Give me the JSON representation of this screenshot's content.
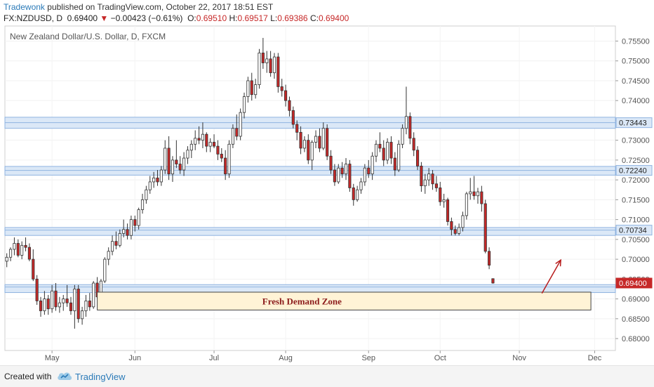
{
  "header": {
    "author": "Tradewonk",
    "published_text": "published on TradingView.com, October 22, 2017 18:51 EST",
    "symbol": "FX:NZDUSD, D",
    "last": "0.69400",
    "change": "−0.00423 (−0.61%)",
    "o_label": "O:",
    "o_value": "0.69510",
    "h_label": "H:",
    "h_value": "0.69517",
    "l_label": "L:",
    "l_value": "0.69386",
    "c_label": "C:",
    "c_value": "0.69400"
  },
  "footer": {
    "created_with": "Created with",
    "brand": "TradingView"
  },
  "chart_data": {
    "type": "candlestick",
    "title": "New Zealand Dollar/U.S. Dollar, D, FXCM",
    "ylim": [
      0.677,
      0.7588
    ],
    "y_ticks": [
      "0.75500",
      "0.75000",
      "0.74500",
      "0.74000",
      "0.73500",
      "0.73000",
      "0.72500",
      "0.72000",
      "0.71500",
      "0.71000",
      "0.70500",
      "0.70000",
      "0.69500",
      "0.69000",
      "0.68500",
      "0.68000"
    ],
    "x_tick_labels": [
      "May",
      "Jun",
      "Jul",
      "Aug",
      "Sep",
      "Oct",
      "Nov",
      "Dec"
    ],
    "x_tick_index": [
      12,
      34,
      55,
      74,
      96,
      115,
      136,
      156
    ],
    "total_slots": 162,
    "resistance_levels": [
      {
        "value": 0.73443,
        "label": "0.73443",
        "band": [
          0.733,
          0.7358
        ]
      },
      {
        "value": 0.7224,
        "label": "0.72240",
        "band": [
          0.7212,
          0.7234
        ]
      },
      {
        "value": 0.70734,
        "label": "0.70734",
        "band": [
          0.706,
          0.708
        ]
      },
      {
        "value": 0.693,
        "label": "",
        "band": [
          0.6916,
          0.6936
        ]
      }
    ],
    "current_price_label": "0.69400",
    "zone": {
      "label": "Fresh Demand Zone",
      "top": 0.6917,
      "bottom": 0.6872,
      "start_index": 24,
      "end_index": 155
    },
    "arrow": {
      "from_index": 142,
      "from_value": 0.6914,
      "to_index": 147,
      "to_value": 0.6998
    },
    "candles": [
      {
        "o": 0.6995,
        "h": 0.7015,
        "l": 0.698,
        "c": 0.7005
      },
      {
        "o": 0.7005,
        "h": 0.703,
        "l": 0.6995,
        "c": 0.7025
      },
      {
        "o": 0.7025,
        "h": 0.7055,
        "l": 0.701,
        "c": 0.704
      },
      {
        "o": 0.704,
        "h": 0.705,
        "l": 0.7005,
        "c": 0.701
      },
      {
        "o": 0.701,
        "h": 0.7045,
        "l": 0.7,
        "c": 0.7035
      },
      {
        "o": 0.7035,
        "h": 0.7055,
        "l": 0.702,
        "c": 0.703
      },
      {
        "o": 0.703,
        "h": 0.704,
        "l": 0.6995,
        "c": 0.7
      },
      {
        "o": 0.7,
        "h": 0.7025,
        "l": 0.6945,
        "c": 0.695
      },
      {
        "o": 0.695,
        "h": 0.696,
        "l": 0.6885,
        "c": 0.6895
      },
      {
        "o": 0.6895,
        "h": 0.6905,
        "l": 0.6855,
        "c": 0.687
      },
      {
        "o": 0.687,
        "h": 0.692,
        "l": 0.686,
        "c": 0.69
      },
      {
        "o": 0.69,
        "h": 0.691,
        "l": 0.686,
        "c": 0.6875
      },
      {
        "o": 0.6875,
        "h": 0.6935,
        "l": 0.6865,
        "c": 0.692
      },
      {
        "o": 0.692,
        "h": 0.694,
        "l": 0.687,
        "c": 0.688
      },
      {
        "o": 0.688,
        "h": 0.6905,
        "l": 0.6865,
        "c": 0.689
      },
      {
        "o": 0.689,
        "h": 0.691,
        "l": 0.687,
        "c": 0.69
      },
      {
        "o": 0.69,
        "h": 0.6935,
        "l": 0.688,
        "c": 0.689
      },
      {
        "o": 0.689,
        "h": 0.6905,
        "l": 0.686,
        "c": 0.687
      },
      {
        "o": 0.687,
        "h": 0.6935,
        "l": 0.6825,
        "c": 0.6925
      },
      {
        "o": 0.6925,
        "h": 0.6935,
        "l": 0.684,
        "c": 0.685
      },
      {
        "o": 0.685,
        "h": 0.688,
        "l": 0.6835,
        "c": 0.687
      },
      {
        "o": 0.687,
        "h": 0.691,
        "l": 0.6855,
        "c": 0.6895
      },
      {
        "o": 0.6895,
        "h": 0.6915,
        "l": 0.687,
        "c": 0.688
      },
      {
        "o": 0.688,
        "h": 0.6945,
        "l": 0.6875,
        "c": 0.694
      },
      {
        "o": 0.694,
        "h": 0.6955,
        "l": 0.69,
        "c": 0.6905
      },
      {
        "o": 0.6905,
        "h": 0.695,
        "l": 0.6895,
        "c": 0.6945
      },
      {
        "o": 0.6945,
        "h": 0.7005,
        "l": 0.694,
        "c": 0.7
      },
      {
        "o": 0.7,
        "h": 0.703,
        "l": 0.6985,
        "c": 0.702
      },
      {
        "o": 0.702,
        "h": 0.706,
        "l": 0.701,
        "c": 0.7045
      },
      {
        "o": 0.7045,
        "h": 0.707,
        "l": 0.7025,
        "c": 0.7035
      },
      {
        "o": 0.7035,
        "h": 0.7075,
        "l": 0.703,
        "c": 0.7065
      },
      {
        "o": 0.7065,
        "h": 0.71,
        "l": 0.7055,
        "c": 0.7075
      },
      {
        "o": 0.7075,
        "h": 0.709,
        "l": 0.705,
        "c": 0.706
      },
      {
        "o": 0.706,
        "h": 0.711,
        "l": 0.705,
        "c": 0.71
      },
      {
        "o": 0.71,
        "h": 0.711,
        "l": 0.707,
        "c": 0.7085
      },
      {
        "o": 0.7085,
        "h": 0.713,
        "l": 0.7075,
        "c": 0.7125
      },
      {
        "o": 0.7125,
        "h": 0.7165,
        "l": 0.7115,
        "c": 0.715
      },
      {
        "o": 0.715,
        "h": 0.7185,
        "l": 0.714,
        "c": 0.7175
      },
      {
        "o": 0.7175,
        "h": 0.721,
        "l": 0.7165,
        "c": 0.7195
      },
      {
        "o": 0.7195,
        "h": 0.722,
        "l": 0.718,
        "c": 0.7205
      },
      {
        "o": 0.7205,
        "h": 0.7225,
        "l": 0.7185,
        "c": 0.7195
      },
      {
        "o": 0.7195,
        "h": 0.7235,
        "l": 0.7185,
        "c": 0.7225
      },
      {
        "o": 0.7225,
        "h": 0.73,
        "l": 0.7215,
        "c": 0.728
      },
      {
        "o": 0.728,
        "h": 0.731,
        "l": 0.72,
        "c": 0.7215
      },
      {
        "o": 0.7215,
        "h": 0.726,
        "l": 0.7195,
        "c": 0.725
      },
      {
        "o": 0.725,
        "h": 0.73,
        "l": 0.723,
        "c": 0.724
      },
      {
        "o": 0.724,
        "h": 0.726,
        "l": 0.7215,
        "c": 0.7225
      },
      {
        "o": 0.7225,
        "h": 0.727,
        "l": 0.721,
        "c": 0.7255
      },
      {
        "o": 0.7255,
        "h": 0.7285,
        "l": 0.724,
        "c": 0.7275
      },
      {
        "o": 0.7275,
        "h": 0.73,
        "l": 0.7255,
        "c": 0.729
      },
      {
        "o": 0.729,
        "h": 0.7325,
        "l": 0.7275,
        "c": 0.7305
      },
      {
        "o": 0.7305,
        "h": 0.7335,
        "l": 0.729,
        "c": 0.73
      },
      {
        "o": 0.73,
        "h": 0.7345,
        "l": 0.728,
        "c": 0.7315
      },
      {
        "o": 0.7315,
        "h": 0.732,
        "l": 0.727,
        "c": 0.7285
      },
      {
        "o": 0.7285,
        "h": 0.7305,
        "l": 0.727,
        "c": 0.7295
      },
      {
        "o": 0.7295,
        "h": 0.7315,
        "l": 0.728,
        "c": 0.7285
      },
      {
        "o": 0.7285,
        "h": 0.73,
        "l": 0.725,
        "c": 0.7265
      },
      {
        "o": 0.7265,
        "h": 0.728,
        "l": 0.7245,
        "c": 0.7255
      },
      {
        "o": 0.7255,
        "h": 0.7275,
        "l": 0.72,
        "c": 0.7215
      },
      {
        "o": 0.7215,
        "h": 0.73,
        "l": 0.7205,
        "c": 0.729
      },
      {
        "o": 0.729,
        "h": 0.734,
        "l": 0.728,
        "c": 0.733
      },
      {
        "o": 0.733,
        "h": 0.7365,
        "l": 0.73,
        "c": 0.731
      },
      {
        "o": 0.731,
        "h": 0.738,
        "l": 0.73,
        "c": 0.737
      },
      {
        "o": 0.737,
        "h": 0.742,
        "l": 0.7355,
        "c": 0.741
      },
      {
        "o": 0.741,
        "h": 0.746,
        "l": 0.7395,
        "c": 0.745
      },
      {
        "o": 0.745,
        "h": 0.747,
        "l": 0.74,
        "c": 0.7415
      },
      {
        "o": 0.7415,
        "h": 0.7455,
        "l": 0.7405,
        "c": 0.744
      },
      {
        "o": 0.744,
        "h": 0.753,
        "l": 0.743,
        "c": 0.752
      },
      {
        "o": 0.752,
        "h": 0.7558,
        "l": 0.748,
        "c": 0.7495
      },
      {
        "o": 0.7495,
        "h": 0.7525,
        "l": 0.747,
        "c": 0.7505
      },
      {
        "o": 0.7505,
        "h": 0.7525,
        "l": 0.746,
        "c": 0.747
      },
      {
        "o": 0.747,
        "h": 0.752,
        "l": 0.7455,
        "c": 0.751
      },
      {
        "o": 0.751,
        "h": 0.752,
        "l": 0.742,
        "c": 0.7435
      },
      {
        "o": 0.7435,
        "h": 0.7455,
        "l": 0.741,
        "c": 0.7425
      },
      {
        "o": 0.7425,
        "h": 0.744,
        "l": 0.7385,
        "c": 0.74
      },
      {
        "o": 0.74,
        "h": 0.741,
        "l": 0.736,
        "c": 0.7375
      },
      {
        "o": 0.7375,
        "h": 0.7385,
        "l": 0.733,
        "c": 0.734
      },
      {
        "o": 0.734,
        "h": 0.735,
        "l": 0.73,
        "c": 0.732
      },
      {
        "o": 0.732,
        "h": 0.7335,
        "l": 0.7265,
        "c": 0.728
      },
      {
        "o": 0.728,
        "h": 0.731,
        "l": 0.727,
        "c": 0.73
      },
      {
        "o": 0.73,
        "h": 0.7315,
        "l": 0.724,
        "c": 0.725
      },
      {
        "o": 0.725,
        "h": 0.73,
        "l": 0.7225,
        "c": 0.7295
      },
      {
        "o": 0.7295,
        "h": 0.7325,
        "l": 0.728,
        "c": 0.731
      },
      {
        "o": 0.731,
        "h": 0.733,
        "l": 0.727,
        "c": 0.728
      },
      {
        "o": 0.728,
        "h": 0.7345,
        "l": 0.7275,
        "c": 0.733
      },
      {
        "o": 0.733,
        "h": 0.734,
        "l": 0.725,
        "c": 0.726
      },
      {
        "o": 0.726,
        "h": 0.7275,
        "l": 0.7215,
        "c": 0.7225
      },
      {
        "o": 0.7225,
        "h": 0.724,
        "l": 0.7185,
        "c": 0.7195
      },
      {
        "o": 0.7195,
        "h": 0.724,
        "l": 0.719,
        "c": 0.723
      },
      {
        "o": 0.723,
        "h": 0.7245,
        "l": 0.7205,
        "c": 0.7215
      },
      {
        "o": 0.7215,
        "h": 0.7255,
        "l": 0.72,
        "c": 0.724
      },
      {
        "o": 0.724,
        "h": 0.725,
        "l": 0.717,
        "c": 0.718
      },
      {
        "o": 0.718,
        "h": 0.719,
        "l": 0.7135,
        "c": 0.715
      },
      {
        "o": 0.715,
        "h": 0.7185,
        "l": 0.7145,
        "c": 0.7175
      },
      {
        "o": 0.7175,
        "h": 0.7205,
        "l": 0.7165,
        "c": 0.7195
      },
      {
        "o": 0.7195,
        "h": 0.724,
        "l": 0.7185,
        "c": 0.723
      },
      {
        "o": 0.723,
        "h": 0.725,
        "l": 0.7205,
        "c": 0.7215
      },
      {
        "o": 0.7215,
        "h": 0.727,
        "l": 0.72,
        "c": 0.726
      },
      {
        "o": 0.726,
        "h": 0.73,
        "l": 0.7245,
        "c": 0.729
      },
      {
        "o": 0.729,
        "h": 0.732,
        "l": 0.727,
        "c": 0.728
      },
      {
        "o": 0.728,
        "h": 0.73,
        "l": 0.7235,
        "c": 0.725
      },
      {
        "o": 0.725,
        "h": 0.7305,
        "l": 0.724,
        "c": 0.7295
      },
      {
        "o": 0.7295,
        "h": 0.731,
        "l": 0.724,
        "c": 0.7255
      },
      {
        "o": 0.7255,
        "h": 0.727,
        "l": 0.721,
        "c": 0.7225
      },
      {
        "o": 0.7225,
        "h": 0.73,
        "l": 0.722,
        "c": 0.729
      },
      {
        "o": 0.729,
        "h": 0.734,
        "l": 0.728,
        "c": 0.733
      },
      {
        "o": 0.733,
        "h": 0.7435,
        "l": 0.7315,
        "c": 0.736
      },
      {
        "o": 0.736,
        "h": 0.737,
        "l": 0.729,
        "c": 0.7305
      },
      {
        "o": 0.7305,
        "h": 0.732,
        "l": 0.726,
        "c": 0.7275
      },
      {
        "o": 0.7275,
        "h": 0.7285,
        "l": 0.7225,
        "c": 0.7235
      },
      {
        "o": 0.7235,
        "h": 0.7245,
        "l": 0.717,
        "c": 0.7185
      },
      {
        "o": 0.7185,
        "h": 0.7215,
        "l": 0.7165,
        "c": 0.72
      },
      {
        "o": 0.72,
        "h": 0.723,
        "l": 0.7185,
        "c": 0.7215
      },
      {
        "o": 0.7215,
        "h": 0.7225,
        "l": 0.7175,
        "c": 0.719
      },
      {
        "o": 0.719,
        "h": 0.721,
        "l": 0.717,
        "c": 0.718
      },
      {
        "o": 0.718,
        "h": 0.7195,
        "l": 0.7135,
        "c": 0.7145
      },
      {
        "o": 0.7145,
        "h": 0.7165,
        "l": 0.713,
        "c": 0.715
      },
      {
        "o": 0.715,
        "h": 0.7155,
        "l": 0.7085,
        "c": 0.7095
      },
      {
        "o": 0.7095,
        "h": 0.7105,
        "l": 0.706,
        "c": 0.7075
      },
      {
        "o": 0.7075,
        "h": 0.7085,
        "l": 0.706,
        "c": 0.7065
      },
      {
        "o": 0.7065,
        "h": 0.709,
        "l": 0.706,
        "c": 0.708
      },
      {
        "o": 0.708,
        "h": 0.712,
        "l": 0.707,
        "c": 0.711
      },
      {
        "o": 0.711,
        "h": 0.717,
        "l": 0.71,
        "c": 0.7165
      },
      {
        "o": 0.7165,
        "h": 0.7205,
        "l": 0.715,
        "c": 0.717
      },
      {
        "o": 0.717,
        "h": 0.721,
        "l": 0.715,
        "c": 0.716
      },
      {
        "o": 0.716,
        "h": 0.718,
        "l": 0.714,
        "c": 0.717
      },
      {
        "o": 0.717,
        "h": 0.7185,
        "l": 0.712,
        "c": 0.714
      },
      {
        "o": 0.714,
        "h": 0.715,
        "l": 0.7015,
        "c": 0.702
      },
      {
        "o": 0.702,
        "h": 0.703,
        "l": 0.6975,
        "c": 0.6985
      },
      {
        "o": 0.6951,
        "h": 0.69517,
        "l": 0.69386,
        "c": 0.694
      }
    ]
  }
}
